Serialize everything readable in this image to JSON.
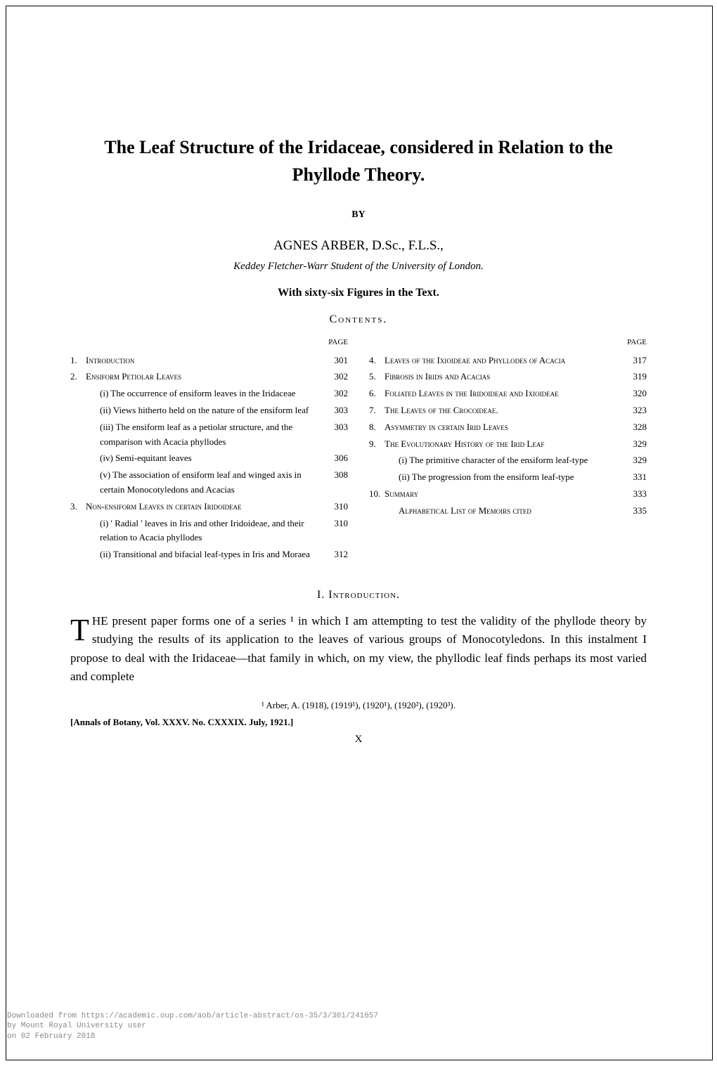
{
  "title": "The Leaf Structure of the Iridaceae, considered in Relation to the Phyllode Theory.",
  "by": "BY",
  "author": "AGNES ARBER, D.Sc., F.L.S.,",
  "affiliation": "Keddey Fletcher-Warr Student of the University of London.",
  "figures_note": "With sixty-six Figures in the Text.",
  "contents_heading": "Contents.",
  "page_header": "PAGE",
  "left_column": [
    {
      "num": "1.",
      "text": "Introduction",
      "page": "301",
      "caps": true,
      "sub": 0
    },
    {
      "num": "2.",
      "text": "Ensiform Petiolar Leaves",
      "page": "302",
      "caps": true,
      "sub": 0
    },
    {
      "num": "",
      "text": "(i) The occurrence of ensiform leaves in the Iridaceae",
      "page": "302",
      "caps": false,
      "sub": 1
    },
    {
      "num": "",
      "text": "(ii) Views hitherto held on the nature of the ensiform leaf",
      "page": "303",
      "caps": false,
      "sub": 1
    },
    {
      "num": "",
      "text": "(iii) The ensiform leaf as a petiolar structure, and the comparison with Acacia phyllodes",
      "page": "303",
      "caps": false,
      "sub": 1
    },
    {
      "num": "",
      "text": "(iv) Semi-equitant leaves",
      "page": "306",
      "caps": false,
      "sub": 1
    },
    {
      "num": "",
      "text": "(v) The association of ensiform leaf and winged axis in certain Monocotyledons and Acacias",
      "page": "308",
      "caps": false,
      "sub": 1
    },
    {
      "num": "3.",
      "text": "Non-ensiform Leaves in certain Iridoideae",
      "page": "310",
      "caps": true,
      "sub": 0
    },
    {
      "num": "",
      "text": "(i) ' Radial ' leaves in Iris and other Iridoideae, and their relation to Acacia phyllodes",
      "page": "310",
      "caps": false,
      "sub": 1
    },
    {
      "num": "",
      "text": "(ii) Transitional and bifacial leaf-types in Iris and Moraea",
      "page": "312",
      "caps": false,
      "sub": 1
    }
  ],
  "right_column": [
    {
      "num": "4.",
      "text": "Leaves of the Ixioideae and Phyllodes of Acacia",
      "page": "317",
      "caps": true,
      "sub": 0
    },
    {
      "num": "5.",
      "text": "Fibrosis in Irids and Acacias",
      "page": "319",
      "caps": true,
      "sub": 0
    },
    {
      "num": "6.",
      "text": "Foliated Leaves in the Iridoideae and Ixioideae",
      "page": "320",
      "caps": true,
      "sub": 0
    },
    {
      "num": "7.",
      "text": "The Leaves of the Crocoideae.",
      "page": "323",
      "caps": true,
      "sub": 0
    },
    {
      "num": "8.",
      "text": "Asymmetry in certain Irid Leaves",
      "page": "328",
      "caps": true,
      "sub": 0
    },
    {
      "num": "9.",
      "text": "The Evolutionary History of the Irid Leaf",
      "page": "329",
      "caps": true,
      "sub": 0
    },
    {
      "num": "",
      "text": "(i) The primitive character of the ensiform leaf-type",
      "page": "329",
      "caps": false,
      "sub": 1
    },
    {
      "num": "",
      "text": "(ii) The progression from the ensiform leaf-type",
      "page": "331",
      "caps": false,
      "sub": 1
    },
    {
      "num": "10.",
      "text": "Summary",
      "page": "333",
      "caps": true,
      "sub": 0
    },
    {
      "num": "",
      "text": "Alphabetical List of Memoirs cited",
      "page": "335",
      "caps": true,
      "sub": 1
    }
  ],
  "section_heading": "I. Introduction.",
  "body_paragraph": "HE present paper forms one of a series ¹ in which I am attempting to test the validity of the phyllode theory by studying the results of its application to the leaves of various groups of Monocotyledons. In this instalment I propose to deal with the Iridaceae—that family in which, on my view, the phyllodic leaf finds perhaps its most varied and complete",
  "dropcap": "T",
  "footnote": "¹ Arber, A. (1918), (1919¹), (1920¹), (1920²), (1920³).",
  "citation_line": "[Annals of Botany, Vol. XXXV. No. CXXXIX. July, 1921.]",
  "page_signature": "X",
  "download": {
    "line1": "Downloaded from https://academic.oup.com/aob/article-abstract/os-35/3/301/241657",
    "line2": "by Mount Royal University user",
    "line3": "on 02 February 2018"
  },
  "colors": {
    "background": "#ffffff",
    "text": "#000000",
    "download_text": "#888888"
  },
  "typography": {
    "title_fontsize": 26,
    "author_fontsize": 19,
    "body_fontsize": 17,
    "toc_fontsize": 13,
    "footnote_fontsize": 13
  }
}
